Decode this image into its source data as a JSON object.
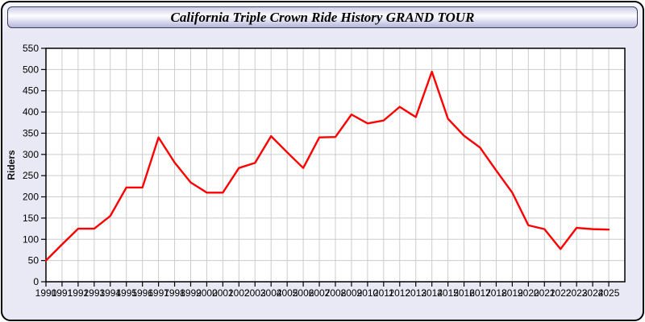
{
  "header": {
    "title": "California Triple Crown Ride History GRAND TOUR"
  },
  "colors": {
    "line": "#ff0000",
    "plot_bg": "#ffffff",
    "grid": "#cccccc",
    "frame": "#000000",
    "panel_bg": "#e9e9f6",
    "header_top": "#cdcde8",
    "header_bottom": "#b5b5d8"
  },
  "chart_data": {
    "type": "line",
    "title": "California Triple Crown Ride History GRAND TOUR",
    "xlabel": "",
    "ylabel": "Riders",
    "ylim": [
      0,
      550
    ],
    "ytick_step": 50,
    "grid": true,
    "legend_position": "none",
    "x": [
      1990,
      1991,
      1992,
      1993,
      1994,
      1995,
      1996,
      1997,
      1998,
      1999,
      2000,
      2001,
      2002,
      2003,
      2004,
      2005,
      2006,
      2007,
      2008,
      2009,
      2010,
      2011,
      2012,
      2013,
      2014,
      2015,
      2016,
      2017,
      2018,
      2019,
      2020,
      2021,
      2022,
      2023,
      2024,
      2025
    ],
    "series": [
      {
        "name": "Riders",
        "color": "#ff0000",
        "values": [
          50,
          88,
          125,
          125,
          155,
          222,
          222,
          340,
          281,
          234,
          210,
          210,
          268,
          280,
          343,
          305,
          268,
          340,
          341,
          394,
          373,
          380,
          412,
          388,
          495,
          384,
          344,
          316,
          262,
          210,
          133,
          124,
          77,
          127,
          124,
          123
        ]
      }
    ]
  }
}
